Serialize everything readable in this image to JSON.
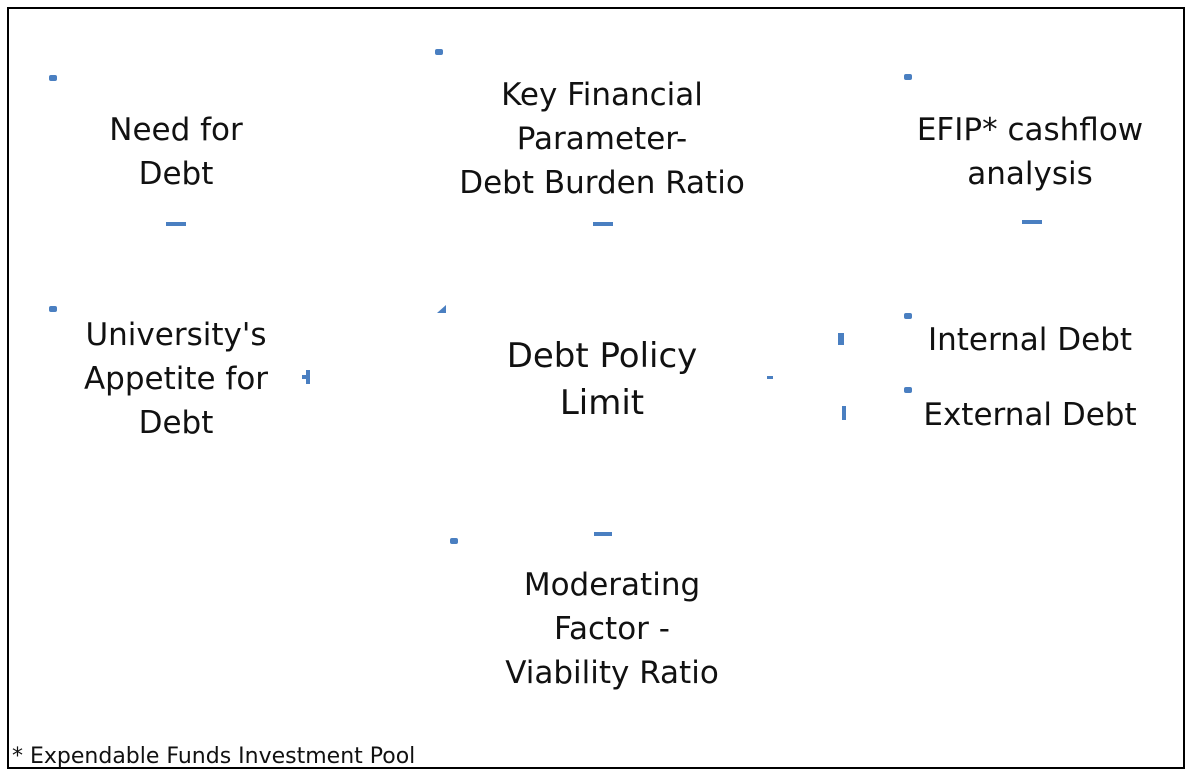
{
  "nodes": [
    {
      "label": [
        "Need for",
        "Debt"
      ]
    },
    {
      "label": [
        "Key Financial",
        "Parameter-",
        "Debt Burden Ratio"
      ]
    },
    {
      "label": [
        "EFIP* cashflow",
        "analysis"
      ]
    },
    {
      "label": [
        "University's",
        "Appetite for",
        "Debt"
      ]
    },
    {
      "label": [
        "Debt Policy",
        "Limit"
      ]
    },
    {
      "label": [
        "Internal Debt"
      ]
    },
    {
      "label": [
        "External Debt"
      ]
    },
    {
      "label": [
        "Moderating",
        "Factor -",
        "Viability Ratio"
      ]
    }
  ],
  "footnote": "* Expendable Funds Investment Pool"
}
